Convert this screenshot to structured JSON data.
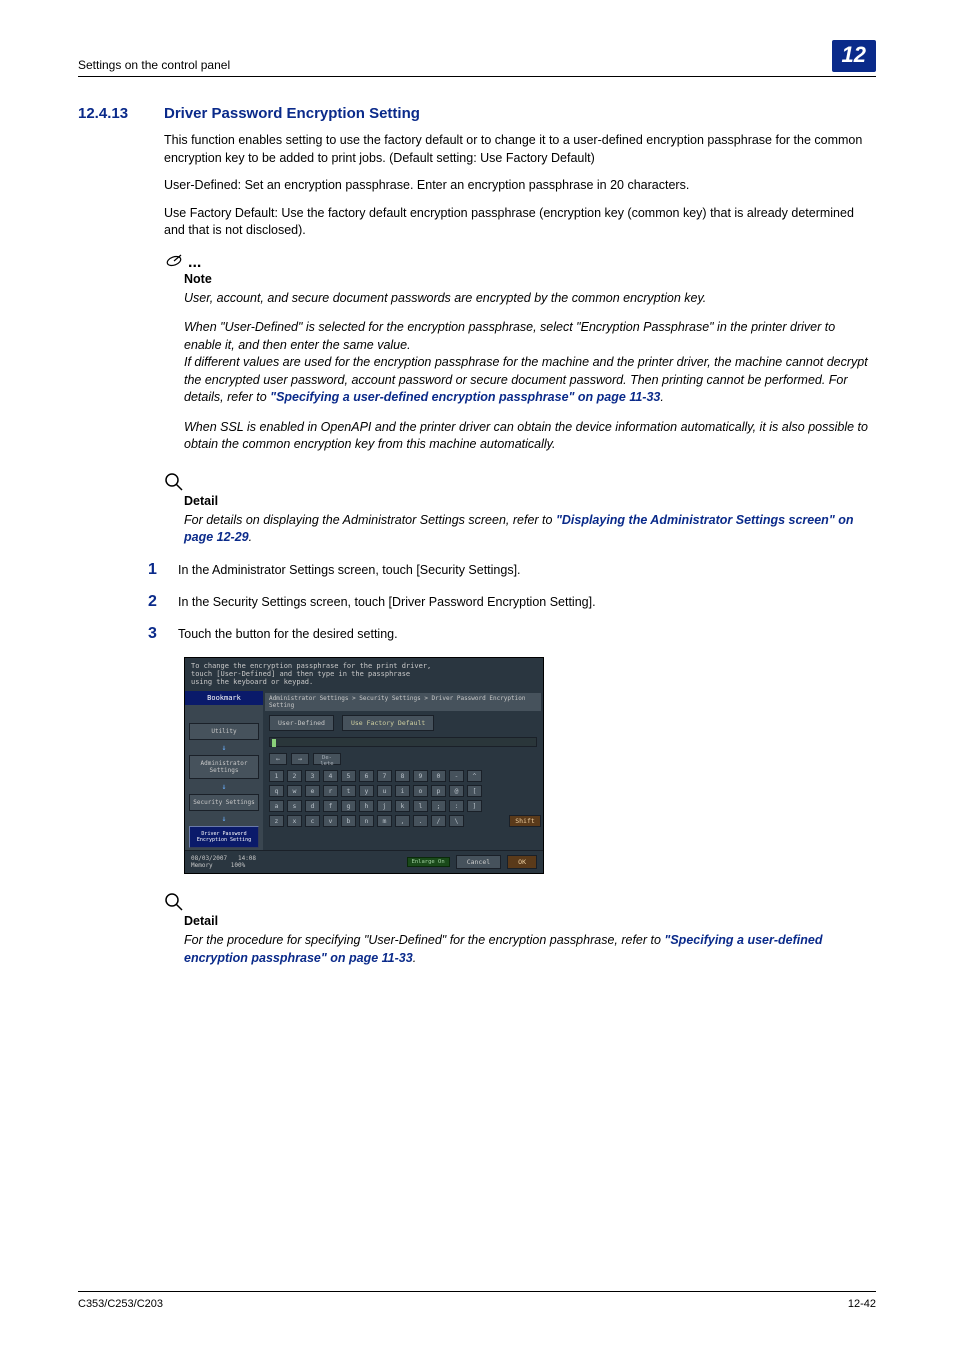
{
  "header": {
    "left": "Settings on the control panel",
    "chapter": "12"
  },
  "section": {
    "num": "12.4.13",
    "title": "Driver Password Encryption Setting"
  },
  "body": {
    "p1": "This function enables setting to use the factory default or to change it to a user-defined encryption passphrase for the common encryption key to be added to print jobs. (Default setting: Use Factory Default)",
    "p2": "User-Defined: Set an encryption passphrase. Enter an encryption passphrase in 20 characters.",
    "p3": "Use Factory Default: Use the factory default encryption passphrase (encryption key (common key) that is already determined and that is not disclosed)."
  },
  "note": {
    "head": "Note",
    "p1": "User, account, and secure document passwords are encrypted by the common encryption key.",
    "p2a": "When \"User-Defined\" is selected for the encryption passphrase, select \"Encryption Passphrase\" in the printer driver to enable it, and then enter the same value.",
    "p2b": "If different values are used for the encryption passphrase for the machine and the printer driver, the machine cannot decrypt the encrypted user password, account password or secure document password. Then printing cannot be performed. For details, refer to ",
    "link1": "\"Specifying a user-defined encryption passphrase\" on page 11-33",
    "p2c": ".",
    "p3": "When SSL is enabled in OpenAPI and the printer driver can obtain the device information automatically, it is also possible to obtain the common encryption key from this machine automatically."
  },
  "detail1": {
    "head": "Detail",
    "text_a": "For details on displaying the Administrator Settings screen, refer to ",
    "link": "\"Displaying the Administrator Settings screen\" on page 12-29",
    "text_b": "."
  },
  "steps": {
    "s1": {
      "n": "1",
      "t": "In the Administrator Settings screen, touch [Security Settings]."
    },
    "s2": {
      "n": "2",
      "t": "In the Security Settings screen, touch [Driver Password Encryption Setting]."
    },
    "s3": {
      "n": "3",
      "t": "Touch the button for the desired setting."
    }
  },
  "panel": {
    "topline1": "To change the encryption passphrase for the print driver,",
    "topline2": "touch [User-Defined] and then type in the passphrase",
    "topline3": "using the keyboard or keypad.",
    "bookmark": "Bookmark",
    "utility": "Utility",
    "admin": "Administrator Settings",
    "security": "Security Settings",
    "driver": "Driver Password Encryption Setting",
    "crumb": "Administrator Settings > Security Settings > Driver Password Encryption Setting",
    "tab1": "User-Defined",
    "tab2": "Use Factory Default",
    "delete": "De-\nlete",
    "row1": [
      "1",
      "2",
      "3",
      "4",
      "5",
      "6",
      "7",
      "8",
      "9",
      "0",
      "-",
      "^"
    ],
    "row2": [
      "q",
      "w",
      "e",
      "r",
      "t",
      "y",
      "u",
      "i",
      "o",
      "p",
      "@",
      "["
    ],
    "row3": [
      "a",
      "s",
      "d",
      "f",
      "g",
      "h",
      "j",
      "k",
      "l",
      ";",
      ":",
      "]"
    ],
    "row4": [
      "z",
      "x",
      "c",
      "v",
      "b",
      "n",
      "m",
      ",",
      ".",
      "/",
      "\\"
    ],
    "shift": "Shift",
    "date": "08/03/2007",
    "time": "14:08",
    "mem": "Memory",
    "pct": "100%",
    "enlarge": "Enlarge On",
    "cancel": "Cancel",
    "ok": "OK"
  },
  "detail2": {
    "head": "Detail",
    "text_a": "For the procedure for specifying \"User-Defined\" for the encryption passphrase, refer to ",
    "link": "\"Specifying a user-defined encryption passphrase\" on page 11-33",
    "text_b": "."
  },
  "footer": {
    "left": "C353/C253/C203",
    "right": "12-42"
  }
}
